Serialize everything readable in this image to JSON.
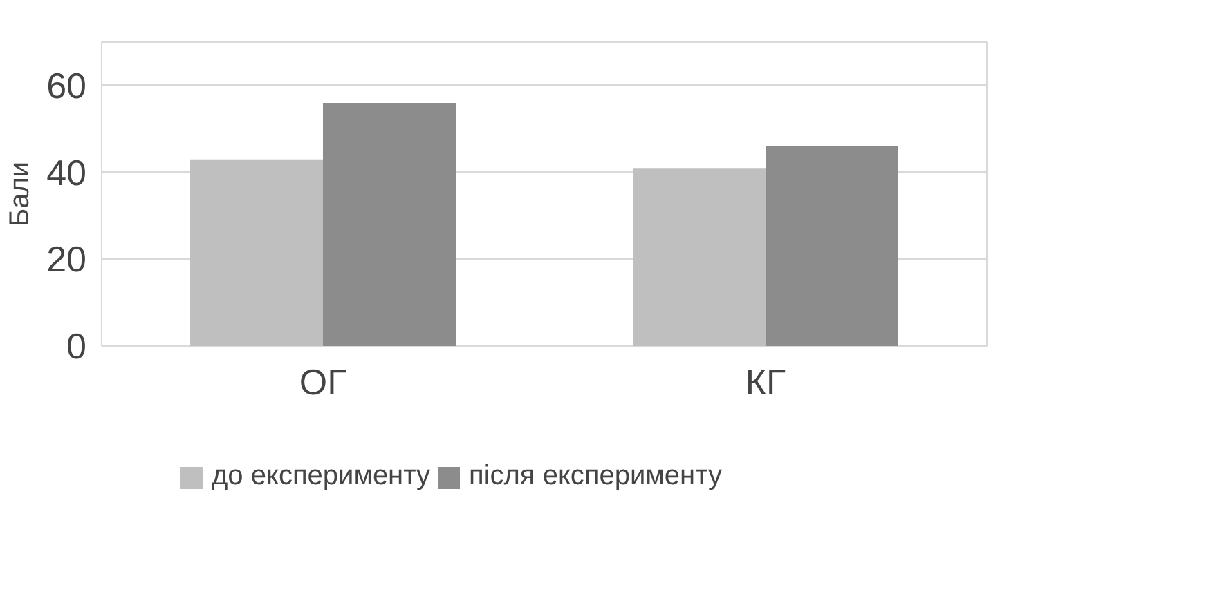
{
  "chart_data": {
    "type": "bar",
    "ylabel": "Бали",
    "categories": [
      "ОГ",
      "КГ"
    ],
    "series": [
      {
        "name": "до експерименту",
        "color": "#bfbfbf",
        "values": [
          43,
          41
        ]
      },
      {
        "name": "після експерименту",
        "color": "#8c8c8c",
        "values": [
          56,
          46
        ]
      }
    ],
    "ylim": [
      0,
      70
    ],
    "yticks": [
      0,
      20,
      40,
      60
    ],
    "grid": "y",
    "legend": "bottom"
  }
}
